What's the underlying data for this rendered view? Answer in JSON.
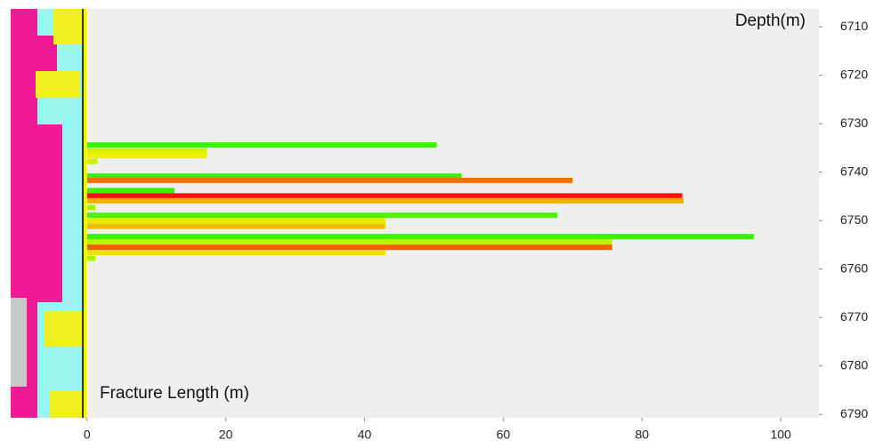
{
  "chart_data": {
    "type": "hbar",
    "x_label": "Fracture Length (m)",
    "y_label": "Depth(m)",
    "y": [
      6734.4,
      6735.6,
      6736.6,
      6737.8,
      6740.8,
      6741.7,
      6743.8,
      6744.9,
      6745.9,
      6747.3,
      6748.9,
      6750.1,
      6751.2,
      6753.3,
      6754.4,
      6755.5,
      6756.6,
      6757.8
    ],
    "values": [
      50.4,
      17.3,
      17.3,
      1.5,
      54,
      70,
      12.6,
      85.8,
      86,
      1.2,
      67.8,
      43,
      43,
      96.1,
      75.7,
      75.7,
      43,
      1.2
    ],
    "colors": [
      "#3cf000",
      "#d8f000",
      "#f0f000",
      "#c8f000",
      "#3cf000",
      "#f07000",
      "#3cf000",
      "#ff1010",
      "#f0b000",
      "#a0f000",
      "#50f000",
      "#e8e800",
      "#f0c000",
      "#3cf000",
      "#c0f000",
      "#f06000",
      "#f0e000",
      "#b0f000"
    ],
    "xlim": [
      -11,
      105.5
    ],
    "ylim": [
      6706.3,
      6790.7
    ],
    "xticks": [
      0,
      20,
      40,
      60,
      80,
      100
    ],
    "yticks": [
      6710,
      6720,
      6730,
      6740,
      6750,
      6760,
      6770,
      6780,
      6790
    ]
  }
}
